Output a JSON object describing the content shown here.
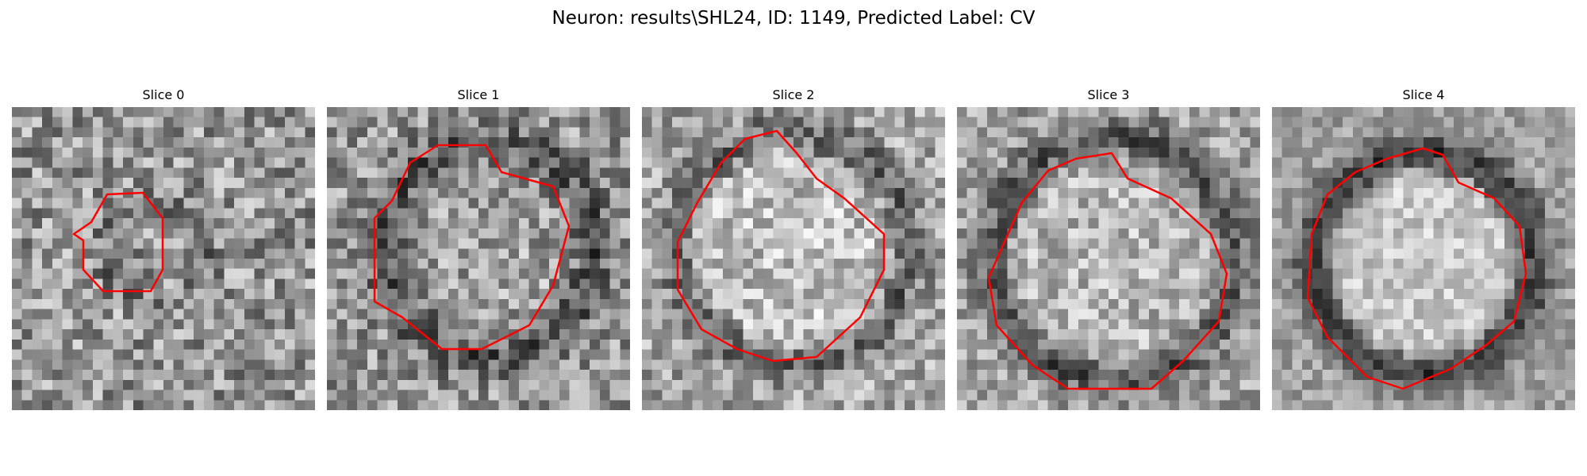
{
  "figure": {
    "title": "Neuron: results\\SHL24, ID: 1149, Predicted Label: CV"
  },
  "colors": {
    "contour": "#ff0000",
    "background": "#ffffff"
  },
  "panels": [
    {
      "title": "Slice 0"
    },
    {
      "title": "Slice 1"
    },
    {
      "title": "Slice 2"
    },
    {
      "title": "Slice 3"
    },
    {
      "title": "Slice 4"
    }
  ]
}
